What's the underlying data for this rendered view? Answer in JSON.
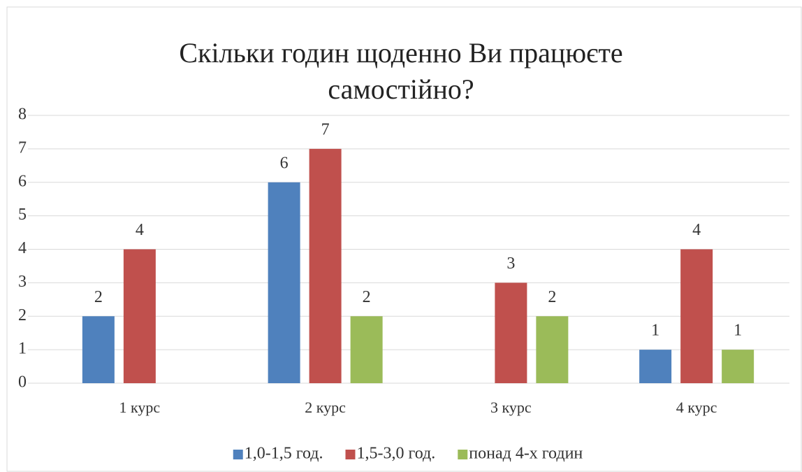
{
  "chart_data": {
    "type": "bar",
    "title": "Скільки годин щоденно Ви працюєте самостійно?",
    "categories": [
      "1 курс",
      "2 курс",
      "3 курс",
      "4 курс"
    ],
    "series": [
      {
        "name": "1,0-1,5 год.",
        "color": "#4f81bd",
        "values": [
          2,
          6,
          null,
          1
        ]
      },
      {
        "name": "1,5-3,0 год.",
        "color": "#c0504d",
        "values": [
          4,
          7,
          3,
          4
        ]
      },
      {
        "name": "понад 4-х годин",
        "color": "#9bbb59",
        "values": [
          null,
          2,
          2,
          1
        ]
      }
    ],
    "ylim": [
      0,
      8
    ],
    "yticks": [
      0,
      1,
      2,
      3,
      4,
      5,
      6,
      7,
      8
    ],
    "grid": true,
    "legend": "bottom"
  }
}
